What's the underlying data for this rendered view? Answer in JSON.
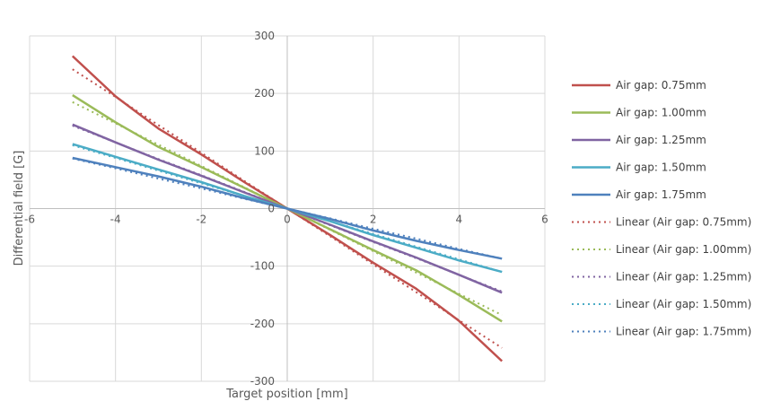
{
  "chart_data": {
    "type": "line",
    "title": "",
    "xlabel": "Target position [mm]",
    "ylabel": "Differential field [G]",
    "xlim": [
      -6,
      6
    ],
    "ylim": [
      -300,
      300
    ],
    "xticks": [
      -6,
      -4,
      -2,
      0,
      2,
      4,
      6
    ],
    "yticks": [
      300,
      200,
      100,
      0,
      -100,
      -200,
      -300
    ],
    "grid": true,
    "legend_position": "right",
    "x": [
      -5,
      -4,
      -3,
      -2,
      -1,
      0,
      1,
      2,
      3,
      4,
      5
    ],
    "series": [
      {
        "name": "Air gap: 0.75mm",
        "color": "#C0504D",
        "style": "solid",
        "values": [
          265,
          195,
          139,
          94,
          46,
          0,
          -46,
          -94,
          -139,
          -195,
          -265
        ]
      },
      {
        "name": "Air gap: 1.00mm",
        "color": "#9BBB59",
        "style": "solid",
        "values": [
          197,
          150,
          107,
          72,
          36,
          0,
          -36,
          -72,
          -107,
          -150,
          -196
        ]
      },
      {
        "name": "Air gap: 1.25mm",
        "color": "#8064A2",
        "style": "solid",
        "values": [
          146,
          115,
          85,
          57,
          28,
          0,
          -28,
          -57,
          -85,
          -115,
          -146
        ]
      },
      {
        "name": "Air gap: 1.50mm",
        "color": "#4BACC6",
        "style": "solid",
        "values": [
          112,
          90,
          68,
          46,
          22,
          0,
          -22,
          -46,
          -68,
          -90,
          -110
        ]
      },
      {
        "name": "Air gap: 1.75mm",
        "color": "#4F81BD",
        "style": "solid",
        "values": [
          88,
          72,
          56,
          38,
          18,
          0,
          -18,
          -38,
          -56,
          -72,
          -87
        ]
      },
      {
        "name": "Linear (Air gap: 0.75mm)",
        "color": "#C0504D",
        "style": "dotted",
        "values": [
          242,
          194,
          145,
          97,
          48,
          0,
          -48,
          -97,
          -145,
          -194,
          -242
        ]
      },
      {
        "name": "Linear (Air gap: 1.00mm)",
        "color": "#9BBB59",
        "style": "dotted",
        "values": [
          185,
          148,
          111,
          74,
          37,
          0,
          -37,
          -74,
          -111,
          -148,
          -185
        ]
      },
      {
        "name": "Linear (Air gap: 1.25mm)",
        "color": "#8064A2",
        "style": "dotted",
        "values": [
          144,
          115,
          86,
          58,
          29,
          0,
          -29,
          -58,
          -86,
          -115,
          -144
        ]
      },
      {
        "name": "Linear (Air gap: 1.50mm)",
        "color": "#4BACC6",
        "style": "dotted",
        "values": [
          110,
          88,
          66,
          44,
          22,
          0,
          -22,
          -44,
          -66,
          -88,
          -110
        ]
      },
      {
        "name": "Linear (Air gap: 1.75mm)",
        "color": "#4F81BD",
        "style": "dotted",
        "values": [
          87,
          70,
          52,
          35,
          17,
          0,
          -17,
          -35,
          -52,
          -70,
          -87
        ]
      }
    ]
  }
}
